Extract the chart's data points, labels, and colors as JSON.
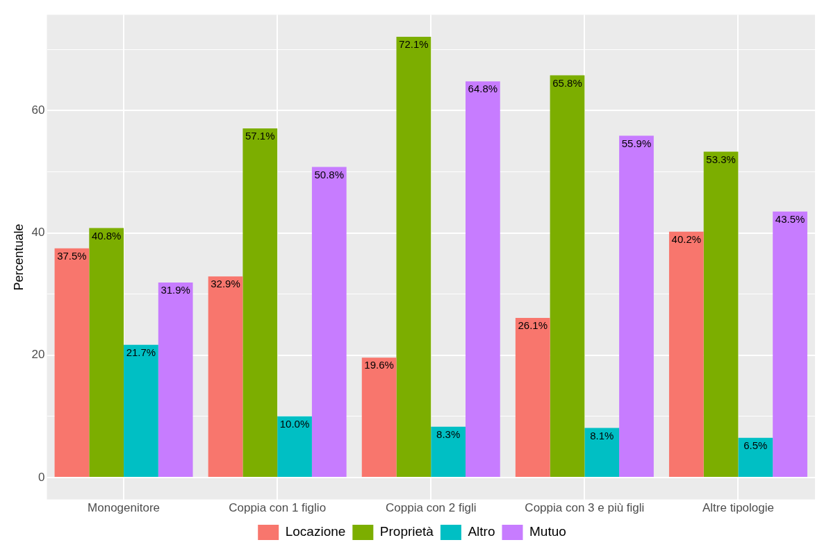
{
  "chart_data": {
    "type": "bar",
    "ylabel": "Percentuale",
    "categories": [
      "Monogenitore",
      "Coppia con 1 figlio",
      "Coppia con 2 figli",
      "Coppia con 3 e più figli",
      "Altre tipologie"
    ],
    "series": [
      {
        "name": "Locazione",
        "color": "#f8766d",
        "values": [
          37.5,
          32.9,
          19.6,
          26.1,
          40.2
        ],
        "value_labels": [
          "37.5%",
          "32.9%",
          "19.6%",
          "26.1%",
          "40.2%"
        ]
      },
      {
        "name": "Proprietà",
        "color": "#7cae00",
        "values": [
          40.8,
          57.1,
          72.1,
          65.8,
          53.3
        ],
        "value_labels": [
          "40.8%",
          "57.1%",
          "72.1%",
          "65.8%",
          "53.3%"
        ]
      },
      {
        "name": "Altro",
        "color": "#00bfc4",
        "values": [
          21.7,
          10.0,
          8.3,
          8.1,
          6.5
        ],
        "value_labels": [
          "21.7%",
          "10.0%",
          "8.3%",
          "8.1%",
          "6.5%"
        ]
      },
      {
        "name": "Mutuo",
        "color": "#c77cff",
        "values": [
          31.9,
          50.8,
          64.8,
          55.9,
          43.5
        ],
        "value_labels": [
          "31.9%",
          "50.8%",
          "64.8%",
          "55.9%",
          "43.5%"
        ]
      }
    ],
    "ylim": [
      -3.6,
      75.7
    ],
    "yticks": [
      0,
      {
        "value": 10,
        "label": null
      },
      20,
      {
        "value": 30,
        "label": null
      },
      40,
      {
        "value": 50,
        "label": null
      },
      60,
      {
        "value": 70,
        "label": null
      }
    ],
    "grid": true,
    "legend": "bottom"
  }
}
